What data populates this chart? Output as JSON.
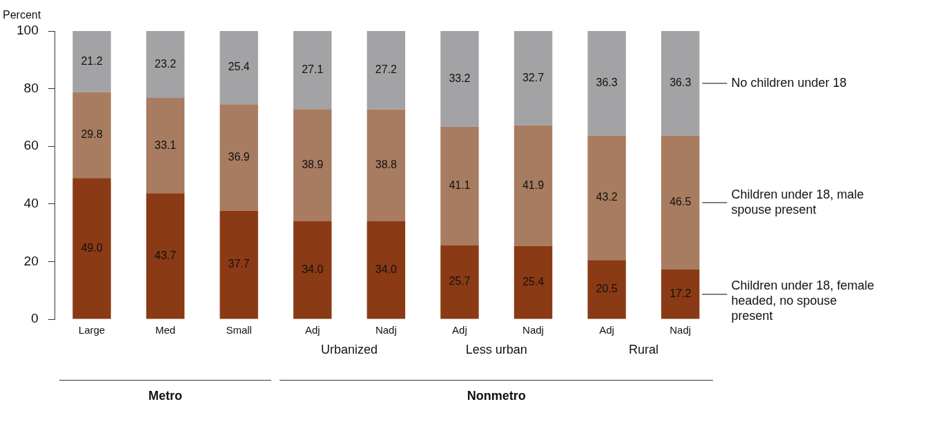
{
  "chart_data": {
    "type": "bar",
    "stacked": true,
    "ylabel": "Percent",
    "categories": [
      "Large",
      "Med",
      "Small",
      "Adj",
      "Nadj",
      "Adj",
      "Nadj",
      "Adj",
      "Nadj"
    ],
    "series": [
      {
        "name": "Children under 18, female headed, no spouse present",
        "color": "#8a3a14",
        "values": [
          49.0,
          43.7,
          37.7,
          34.0,
          34.0,
          25.7,
          25.4,
          20.5,
          17.2
        ],
        "value_labels": [
          "49.0",
          "43.7",
          "37.7",
          "34.0",
          "34.0",
          "25.7",
          "25.4",
          "20.5",
          "17.2"
        ]
      },
      {
        "name": "Children under 18, male spouse present",
        "color": "#a87c60",
        "values": [
          29.8,
          33.1,
          36.9,
          38.9,
          38.8,
          41.1,
          41.9,
          43.2,
          46.5
        ],
        "value_labels": [
          "29.8",
          "33.1",
          "36.9",
          "38.9",
          "38.8",
          "41.1",
          "41.9",
          "43.2",
          "46.5"
        ]
      },
      {
        "name": "No children under 18",
        "color": "#a3a3a5",
        "values": [
          21.2,
          23.2,
          25.4,
          27.1,
          27.2,
          33.2,
          32.7,
          36.3,
          36.3
        ],
        "value_labels": [
          "21.2",
          "23.2",
          "25.4",
          "27.1",
          "27.2",
          "33.2",
          "32.7",
          "36.3",
          "36.3"
        ]
      }
    ],
    "ylim": [
      0,
      100
    ],
    "yticks": [
      0,
      20,
      40,
      60,
      80,
      100
    ],
    "grid": false,
    "legend": "right",
    "annotations": [
      "Urbanized",
      "Less urban",
      "Rural",
      "Metro",
      "Nonmetro"
    ]
  }
}
